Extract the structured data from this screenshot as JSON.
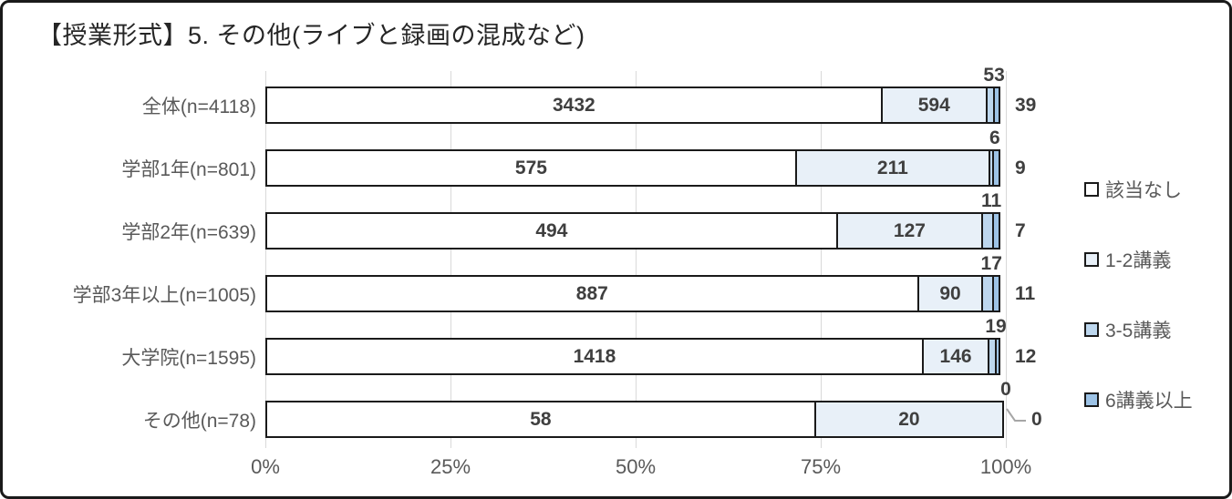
{
  "chart_data": {
    "type": "bar",
    "stacked": true,
    "percent_stacked": true,
    "orientation": "horizontal",
    "title": "【授業形式】5. その他(ライブと録画の混成など)",
    "categories": [
      "全体(n=4118)",
      "学部1年(n=801)",
      "学部2年(n=639)",
      "学部3年以上(n=1005)",
      "大学院(n=1595)",
      "その他(n=78)"
    ],
    "series": [
      {
        "name": "該当なし",
        "color": "#ffffff",
        "values": [
          3432,
          575,
          494,
          887,
          1418,
          58
        ]
      },
      {
        "name": "1-2講義",
        "color": "#e8f0f8",
        "values": [
          594,
          211,
          127,
          90,
          146,
          20
        ]
      },
      {
        "name": "3-5講義",
        "color": "#bdd7ee",
        "values": [
          53,
          6,
          11,
          17,
          19,
          0
        ]
      },
      {
        "name": "6講義以上",
        "color": "#9dc3e6",
        "values": [
          39,
          9,
          7,
          11,
          12,
          0
        ]
      }
    ],
    "x_ticks": [
      "0%",
      "25%",
      "50%",
      "75%",
      "100%"
    ],
    "xlim": [
      0,
      100
    ],
    "grid": true,
    "legend_position": "right",
    "colors": {
      "segment_border": "#1a1a1a",
      "gridline": "#d9d9d9",
      "value_label": "#3f3f3f",
      "category_label": "#595959",
      "axis_label": "#595959",
      "leader_line": "#a6a6a6"
    }
  }
}
